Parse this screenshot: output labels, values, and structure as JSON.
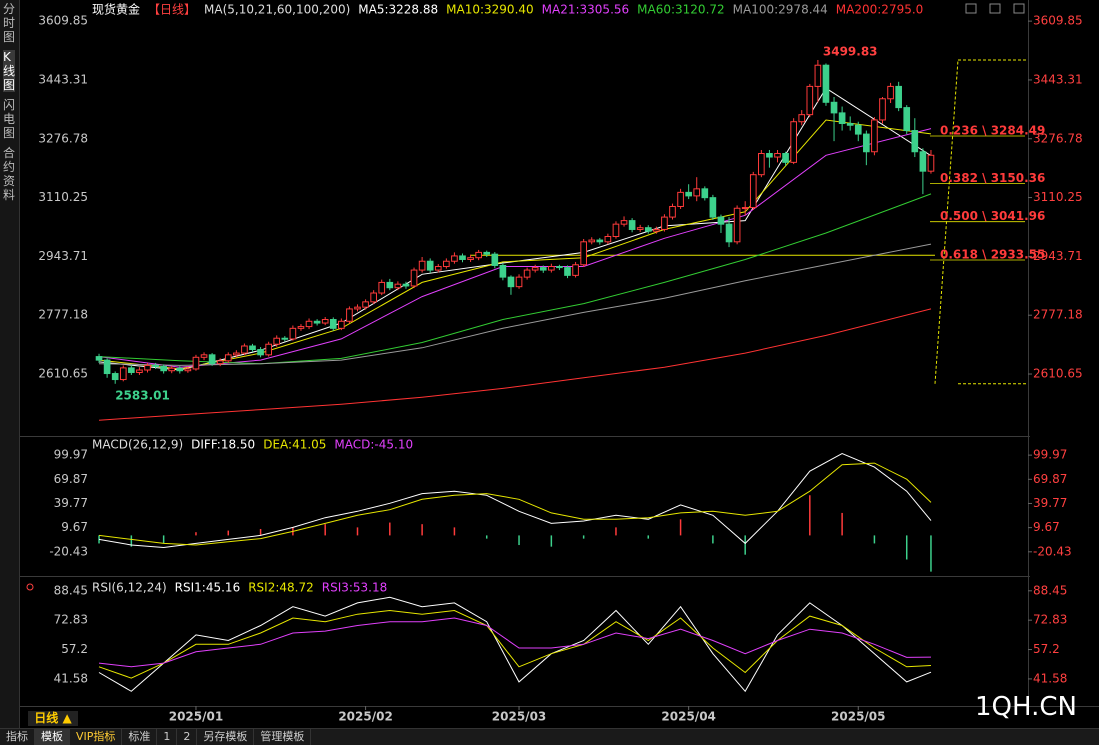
{
  "chart_data": [
    {
      "type": "candlestick",
      "title": "现货黄金",
      "period": "【日线】",
      "ma_label": "MA(5,10,21,60,100,200)",
      "up_color": "#ff3b3b",
      "down_color": "#3dd18c",
      "ylim": [
        2438,
        3647
      ],
      "yticks": [
        3609.85,
        3443.31,
        3276.78,
        3110.25,
        2943.71,
        2777.18,
        2610.65
      ],
      "xticks": [
        {
          "value": 12,
          "label": "2025/01"
        },
        {
          "value": 33,
          "label": "2025/02"
        },
        {
          "value": 52,
          "label": "2025/03"
        },
        {
          "value": 73,
          "label": "2025/04"
        },
        {
          "value": 94,
          "label": "2025/05"
        }
      ],
      "candles": [
        [
          2660,
          2668,
          2642,
          2650
        ],
        [
          2650,
          2655,
          2600,
          2612
        ],
        [
          2612,
          2618,
          2583.01,
          2595
        ],
        [
          2595,
          2635,
          2590,
          2628
        ],
        [
          2628,
          2636,
          2608,
          2615
        ],
        [
          2615,
          2630,
          2608,
          2622
        ],
        [
          2622,
          2642,
          2615,
          2635
        ],
        [
          2635,
          2642,
          2625,
          2632
        ],
        [
          2632,
          2638,
          2612,
          2620
        ],
        [
          2620,
          2634,
          2613,
          2627
        ],
        [
          2627,
          2633,
          2612,
          2620
        ],
        [
          2620,
          2632,
          2614,
          2625
        ],
        [
          2625,
          2665,
          2620,
          2658
        ],
        [
          2658,
          2672,
          2650,
          2665
        ],
        [
          2665,
          2670,
          2634,
          2640
        ],
        [
          2640,
          2655,
          2633,
          2648
        ],
        [
          2648,
          2672,
          2642,
          2665
        ],
        [
          2665,
          2678,
          2658,
          2670
        ],
        [
          2670,
          2697,
          2664,
          2690
        ],
        [
          2690,
          2696,
          2673,
          2680
        ],
        [
          2680,
          2687,
          2658,
          2665
        ],
        [
          2665,
          2702,
          2660,
          2695
        ],
        [
          2695,
          2720,
          2688,
          2712
        ],
        [
          2712,
          2718,
          2703,
          2710
        ],
        [
          2710,
          2748,
          2705,
          2740
        ],
        [
          2740,
          2752,
          2733,
          2745
        ],
        [
          2745,
          2768,
          2738,
          2760
        ],
        [
          2760,
          2766,
          2748,
          2755
        ],
        [
          2755,
          2772,
          2749,
          2765
        ],
        [
          2765,
          2771,
          2733,
          2740
        ],
        [
          2740,
          2768,
          2735,
          2760
        ],
        [
          2760,
          2802,
          2754,
          2795
        ],
        [
          2795,
          2808,
          2788,
          2800
        ],
        [
          2800,
          2822,
          2793,
          2815
        ],
        [
          2815,
          2848,
          2809,
          2840
        ],
        [
          2840,
          2878,
          2834,
          2870
        ],
        [
          2870,
          2880,
          2848,
          2855
        ],
        [
          2855,
          2873,
          2848,
          2865
        ],
        [
          2865,
          2872,
          2852,
          2860
        ],
        [
          2860,
          2912,
          2854,
          2905
        ],
        [
          2905,
          2942,
          2898,
          2930
        ],
        [
          2930,
          2938,
          2897,
          2905
        ],
        [
          2905,
          2922,
          2898,
          2915
        ],
        [
          2915,
          2938,
          2909,
          2930
        ],
        [
          2930,
          2955,
          2923,
          2945
        ],
        [
          2945,
          2952,
          2927,
          2935
        ],
        [
          2935,
          2948,
          2928,
          2940
        ],
        [
          2940,
          2962,
          2933,
          2955
        ],
        [
          2955,
          2960,
          2942,
          2950
        ],
        [
          2950,
          2956,
          2910,
          2918
        ],
        [
          2918,
          2925,
          2876,
          2885
        ],
        [
          2885,
          2890,
          2835,
          2858
        ],
        [
          2858,
          2893,
          2852,
          2885
        ],
        [
          2885,
          2912,
          2878,
          2905
        ],
        [
          2905,
          2920,
          2898,
          2912
        ],
        [
          2912,
          2918,
          2897,
          2905
        ],
        [
          2905,
          2923,
          2898,
          2915
        ],
        [
          2915,
          2920,
          2905,
          2912
        ],
        [
          2912,
          2918,
          2882,
          2890
        ],
        [
          2890,
          2928,
          2884,
          2920
        ],
        [
          2920,
          2993,
          2914,
          2985
        ],
        [
          2985,
          2998,
          2978,
          2990
        ],
        [
          2990,
          2996,
          2977,
          2985
        ],
        [
          2985,
          3008,
          2978,
          3000
        ],
        [
          3000,
          3043,
          2994,
          3035
        ],
        [
          3035,
          3057,
          3028,
          3045
        ],
        [
          3045,
          3052,
          3012,
          3020
        ],
        [
          3020,
          3033,
          3013,
          3025
        ],
        [
          3025,
          3032,
          3008,
          3015
        ],
        [
          3015,
          3028,
          3008,
          3020
        ],
        [
          3020,
          3063,
          3014,
          3055
        ],
        [
          3055,
          3093,
          3048,
          3085
        ],
        [
          3085,
          3135,
          3078,
          3125
        ],
        [
          3125,
          3148,
          3106,
          3115
        ],
        [
          3115,
          3168,
          3100,
          3135
        ],
        [
          3135,
          3142,
          3102,
          3110
        ],
        [
          3110,
          3118,
          3047,
          3055
        ],
        [
          3055,
          3062,
          3010,
          3035
        ],
        [
          3035,
          3055,
          2970,
          2985
        ],
        [
          2985,
          3088,
          2978,
          3080
        ],
        [
          3080,
          3100,
          3060,
          3082
        ],
        [
          3082,
          3183,
          3075,
          3175
        ],
        [
          3175,
          3245,
          3168,
          3235
        ],
        [
          3235,
          3245,
          3195,
          3225
        ],
        [
          3225,
          3245,
          3210,
          3235
        ],
        [
          3235,
          3240,
          3200,
          3210
        ],
        [
          3210,
          3335,
          3205,
          3325
        ],
        [
          3325,
          3358,
          3315,
          3345
        ],
        [
          3345,
          3432,
          3338,
          3425
        ],
        [
          3425,
          3499.83,
          3380,
          3485
        ],
        [
          3485,
          3490,
          3370,
          3380
        ],
        [
          3380,
          3395,
          3270,
          3350
        ],
        [
          3350,
          3368,
          3300,
          3320
        ],
        [
          3320,
          3340,
          3300,
          3315
        ],
        [
          3315,
          3325,
          3270,
          3290
        ],
        [
          3290,
          3300,
          3202,
          3240
        ],
        [
          3240,
          3338,
          3230,
          3330
        ],
        [
          3330,
          3395,
          3320,
          3390
        ],
        [
          3390,
          3435,
          3378,
          3425
        ],
        [
          3425,
          3438,
          3355,
          3365
        ],
        [
          3365,
          3372,
          3290,
          3300
        ],
        [
          3300,
          3335,
          3225,
          3240
        ],
        [
          3240,
          3250,
          3120,
          3185
        ],
        [
          3185,
          3245,
          3178,
          3230
        ]
      ],
      "x": [
        0,
        10,
        20,
        30,
        40,
        50,
        60,
        70,
        80,
        90,
        103
      ],
      "series": [
        {
          "name": "MA5:3228.88",
          "color": "#ffffff",
          "values": [
            2645,
            2622,
            2678,
            2755,
            2893,
            2925,
            2955,
            3030,
            3045,
            3420,
            3228.88
          ]
        },
        {
          "name": "MA10:3290.40",
          "color": "#e6e600",
          "values": [
            2650,
            2625,
            2670,
            2740,
            2870,
            2928,
            2940,
            3020,
            3070,
            3330,
            3290.4
          ]
        },
        {
          "name": "MA21:3305.56",
          "color": "#e040fb",
          "values": [
            2660,
            2630,
            2650,
            2710,
            2830,
            2915,
            2915,
            2995,
            3060,
            3230,
            3305.56
          ]
        },
        {
          "name": "MA60:3120.72",
          "color": "#33cc33",
          "values": [
            2660,
            2648,
            2640,
            2655,
            2700,
            2765,
            2810,
            2870,
            2935,
            3010,
            3120.72
          ]
        },
        {
          "name": "MA100:2978.44",
          "color": "#9a9a9a",
          "values": [
            2640,
            2635,
            2640,
            2650,
            2685,
            2740,
            2785,
            2825,
            2875,
            2920,
            2978.44
          ]
        },
        {
          "name": "MA200:2795.0",
          "color": "#ff3333",
          "values": [
            2480,
            2495,
            2510,
            2525,
            2545,
            2570,
            2600,
            2630,
            2670,
            2720,
            2795.0
          ]
        }
      ],
      "hline": {
        "value": 2947,
        "color": "#e6e600"
      },
      "fib": {
        "color": "#e6e600",
        "label_color": "#ff3b3b",
        "levels": [
          {
            "value": 3284.49,
            "label": "0.236 \\ 3284.49"
          },
          {
            "value": 3150.36,
            "label": "0.382 \\ 3150.36"
          },
          {
            "value": 3041.96,
            "label": "0.500 \\ 3041.96"
          },
          {
            "value": 2933.55,
            "label": "0.618 \\ 2933.55"
          }
        ]
      }
    },
    {
      "type": "macd",
      "title": "MACD(26,12,9)",
      "ylim": [
        -49.3,
        118.8
      ],
      "yticks": [
        99.97,
        69.87,
        39.77,
        9.67,
        -20.43
      ],
      "x": [
        0,
        4,
        8,
        12,
        16,
        20,
        24,
        28,
        32,
        36,
        40,
        44,
        48,
        52,
        56,
        60,
        64,
        68,
        72,
        76,
        80,
        84,
        88,
        92,
        96,
        100,
        103
      ],
      "series": [
        {
          "name": "DIFF:18.50",
          "color": "#ffffff",
          "values": [
            -5,
            -12,
            -15,
            -10,
            -5,
            0,
            10,
            22,
            30,
            40,
            52,
            55,
            50,
            30,
            15,
            18,
            25,
            20,
            38,
            25,
            -10,
            30,
            80,
            102,
            85,
            55,
            18.5
          ]
        },
        {
          "name": "DEA:41.05",
          "color": "#e6e600",
          "values": [
            0,
            -5,
            -10,
            -12,
            -8,
            -4,
            5,
            15,
            25,
            32,
            45,
            50,
            52,
            45,
            28,
            20,
            20,
            22,
            28,
            30,
            25,
            30,
            55,
            88,
            90,
            70,
            41.05
          ]
        }
      ],
      "histogram": {
        "name": "MACD:-45.10",
        "color": "#e040fb",
        "up_color": "#ff3b3b",
        "down_color": "#3dd18c",
        "values": [
          -10,
          -14,
          -10,
          4,
          6,
          8,
          10,
          14,
          10,
          16,
          14,
          10,
          -4,
          -12,
          -14,
          -4,
          10,
          -4,
          20,
          -10,
          -24,
          0,
          50,
          28,
          -10,
          -30,
          -45.1
        ]
      }
    },
    {
      "type": "line",
      "title": "RSI(6,12,24)",
      "ylim": [
        27.7,
        94.2
      ],
      "yticks": [
        88.45,
        72.83,
        57.2,
        41.58
      ],
      "x": [
        0,
        4,
        8,
        12,
        16,
        20,
        24,
        28,
        32,
        36,
        40,
        44,
        48,
        52,
        56,
        60,
        64,
        68,
        72,
        76,
        80,
        84,
        88,
        92,
        96,
        100,
        103
      ],
      "series": [
        {
          "name": "RSI1:45.16",
          "color": "#ffffff",
          "values": [
            45,
            35,
            50,
            65,
            62,
            70,
            80,
            75,
            82,
            85,
            80,
            82,
            72,
            40,
            55,
            62,
            78,
            60,
            80,
            55,
            35,
            65,
            82,
            70,
            55,
            40,
            45.16
          ]
        },
        {
          "name": "RSI2:48.72",
          "color": "#e6e600",
          "values": [
            48,
            42,
            50,
            60,
            60,
            66,
            74,
            72,
            76,
            78,
            76,
            78,
            70,
            48,
            55,
            60,
            72,
            62,
            74,
            58,
            45,
            62,
            75,
            70,
            58,
            48,
            48.72
          ]
        },
        {
          "name": "RSI3:53.18",
          "color": "#e040fb",
          "values": [
            50,
            48,
            50,
            56,
            58,
            60,
            66,
            67,
            70,
            72,
            72,
            74,
            70,
            58,
            58,
            60,
            66,
            63,
            68,
            62,
            55,
            62,
            68,
            66,
            60,
            53,
            53.18
          ]
        }
      ]
    }
  ],
  "ui": {
    "sidebar": [
      "分时图",
      "K线图",
      "闪电图",
      "合约资料"
    ],
    "period_button": "日线 ▲",
    "toolbar": [
      "指标",
      "模板",
      "VIP指标",
      "标准",
      "1",
      "2",
      "另存模板",
      "管理模板"
    ],
    "watermark": "1QH.CN"
  }
}
